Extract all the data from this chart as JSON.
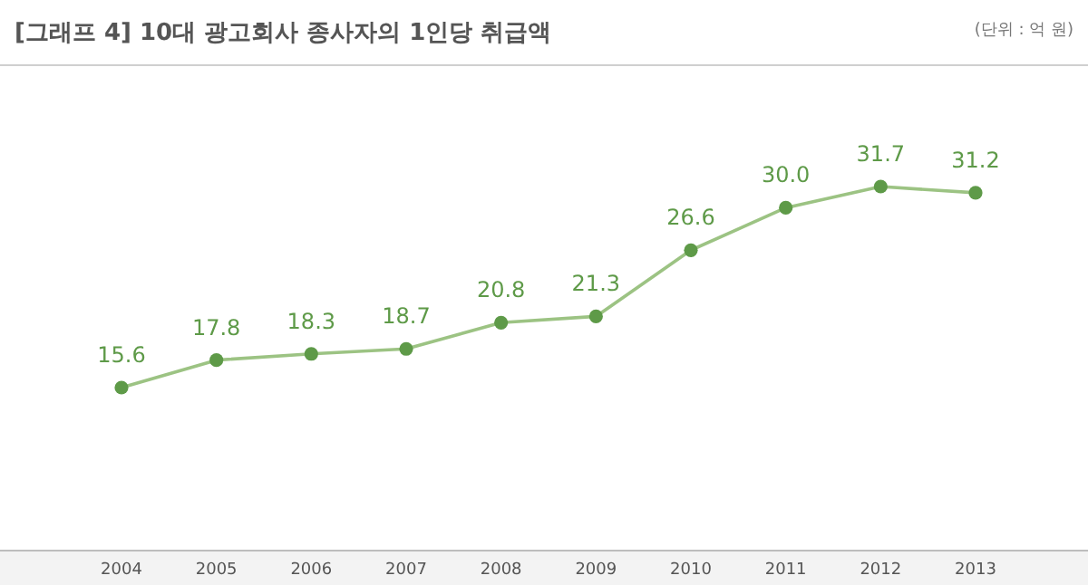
{
  "chart_data": {
    "type": "line",
    "title": "[그래프 4] 10대 광고회사 종사자의 1인당 취급액",
    "annotations": [
      "(단위 : 억 원)"
    ],
    "categories": [
      "2004",
      "2005",
      "2006",
      "2007",
      "2008",
      "2009",
      "2010",
      "2011",
      "2012",
      "2013"
    ],
    "series": [
      {
        "color": "#5e9a48",
        "values": [
          15.6,
          17.8,
          18.3,
          18.7,
          20.8,
          21.3,
          26.6,
          30.0,
          31.7,
          31.2
        ],
        "value_labels": [
          "15.6",
          "17.8",
          "18.3",
          "18.7",
          "20.8",
          "21.3",
          "26.6",
          "30.0",
          "31.7",
          "31.2"
        ]
      }
    ],
    "marker": "circle"
  }
}
